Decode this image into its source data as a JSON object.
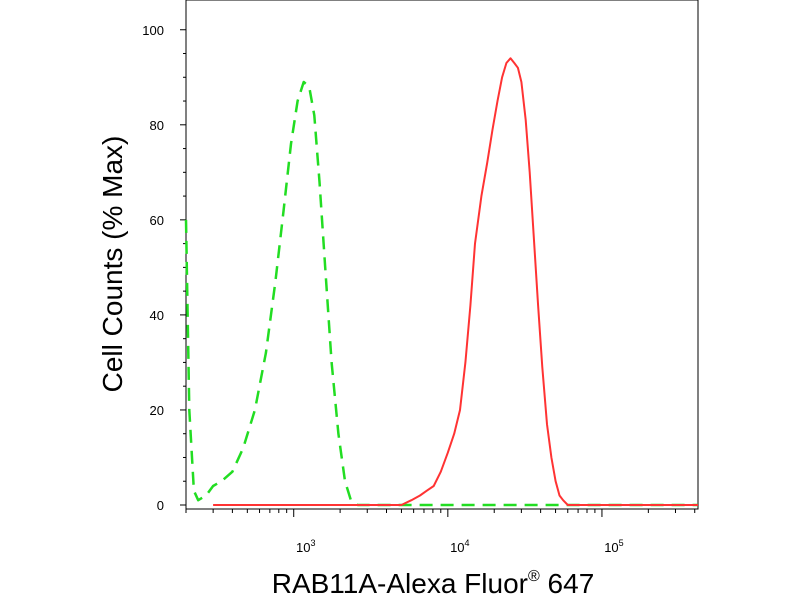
{
  "chart_data": {
    "type": "line",
    "xlabel": {
      "text": "RAB11A-Alexa Fluor",
      "superscript": "®",
      "suffix": " 647"
    },
    "ylabel": "Cell Counts (% Max)",
    "x_scale": "log",
    "xlim": [
      200,
      420000
    ],
    "ylim": [
      0,
      105
    ],
    "y_ticks": [
      {
        "value": 0,
        "label": "0"
      },
      {
        "value": 20,
        "label": "20"
      },
      {
        "value": 40,
        "label": "40"
      },
      {
        "value": 60,
        "label": "60"
      },
      {
        "value": 80,
        "label": "80"
      },
      {
        "value": 100,
        "label": "100"
      }
    ],
    "x_major_ticks": [
      {
        "value": 1000,
        "base": "10",
        "exponent": "3"
      },
      {
        "value": 10000,
        "base": "10",
        "exponent": "4"
      },
      {
        "value": 100000,
        "base": "10",
        "exponent": "5"
      }
    ],
    "grid": false,
    "legend": "none",
    "series": [
      {
        "color": "#22dd22",
        "dash": "dashed",
        "points": [
          [
            200,
            60
          ],
          [
            210,
            20
          ],
          [
            225,
            3
          ],
          [
            240,
            1
          ],
          [
            270,
            2
          ],
          [
            300,
            4
          ],
          [
            340,
            5
          ],
          [
            400,
            7
          ],
          [
            470,
            12
          ],
          [
            560,
            20
          ],
          [
            660,
            32
          ],
          [
            760,
            47
          ],
          [
            860,
            62
          ],
          [
            960,
            76
          ],
          [
            1060,
            85
          ],
          [
            1160,
            89
          ],
          [
            1260,
            88
          ],
          [
            1360,
            82
          ],
          [
            1470,
            68
          ],
          [
            1600,
            50
          ],
          [
            1760,
            30
          ],
          [
            1950,
            15
          ],
          [
            2150,
            5
          ],
          [
            2350,
            1
          ],
          [
            2600,
            0
          ],
          [
            20000,
            0
          ],
          [
            420000,
            0
          ]
        ]
      },
      {
        "color": "#ff3333",
        "dash": "solid",
        "points": [
          [
            300,
            0
          ],
          [
            5000,
            0
          ],
          [
            5800,
            1
          ],
          [
            6600,
            2
          ],
          [
            7300,
            3
          ],
          [
            8100,
            4
          ],
          [
            9000,
            7
          ],
          [
            10000,
            11
          ],
          [
            11000,
            15
          ],
          [
            12000,
            20
          ],
          [
            13000,
            30
          ],
          [
            14000,
            42
          ],
          [
            15000,
            55
          ],
          [
            16500,
            65
          ],
          [
            18000,
            72
          ],
          [
            19500,
            79
          ],
          [
            21000,
            85
          ],
          [
            22500,
            90
          ],
          [
            24000,
            93
          ],
          [
            25500,
            94
          ],
          [
            27000,
            93
          ],
          [
            28500,
            92
          ],
          [
            30000,
            89
          ],
          [
            32000,
            81
          ],
          [
            34000,
            70
          ],
          [
            36000,
            57
          ],
          [
            38500,
            42
          ],
          [
            41000,
            29
          ],
          [
            44000,
            17
          ],
          [
            47000,
            10
          ],
          [
            50000,
            5
          ],
          [
            53000,
            2
          ],
          [
            56000,
            1
          ],
          [
            60000,
            0
          ],
          [
            420000,
            0
          ]
        ]
      }
    ]
  }
}
